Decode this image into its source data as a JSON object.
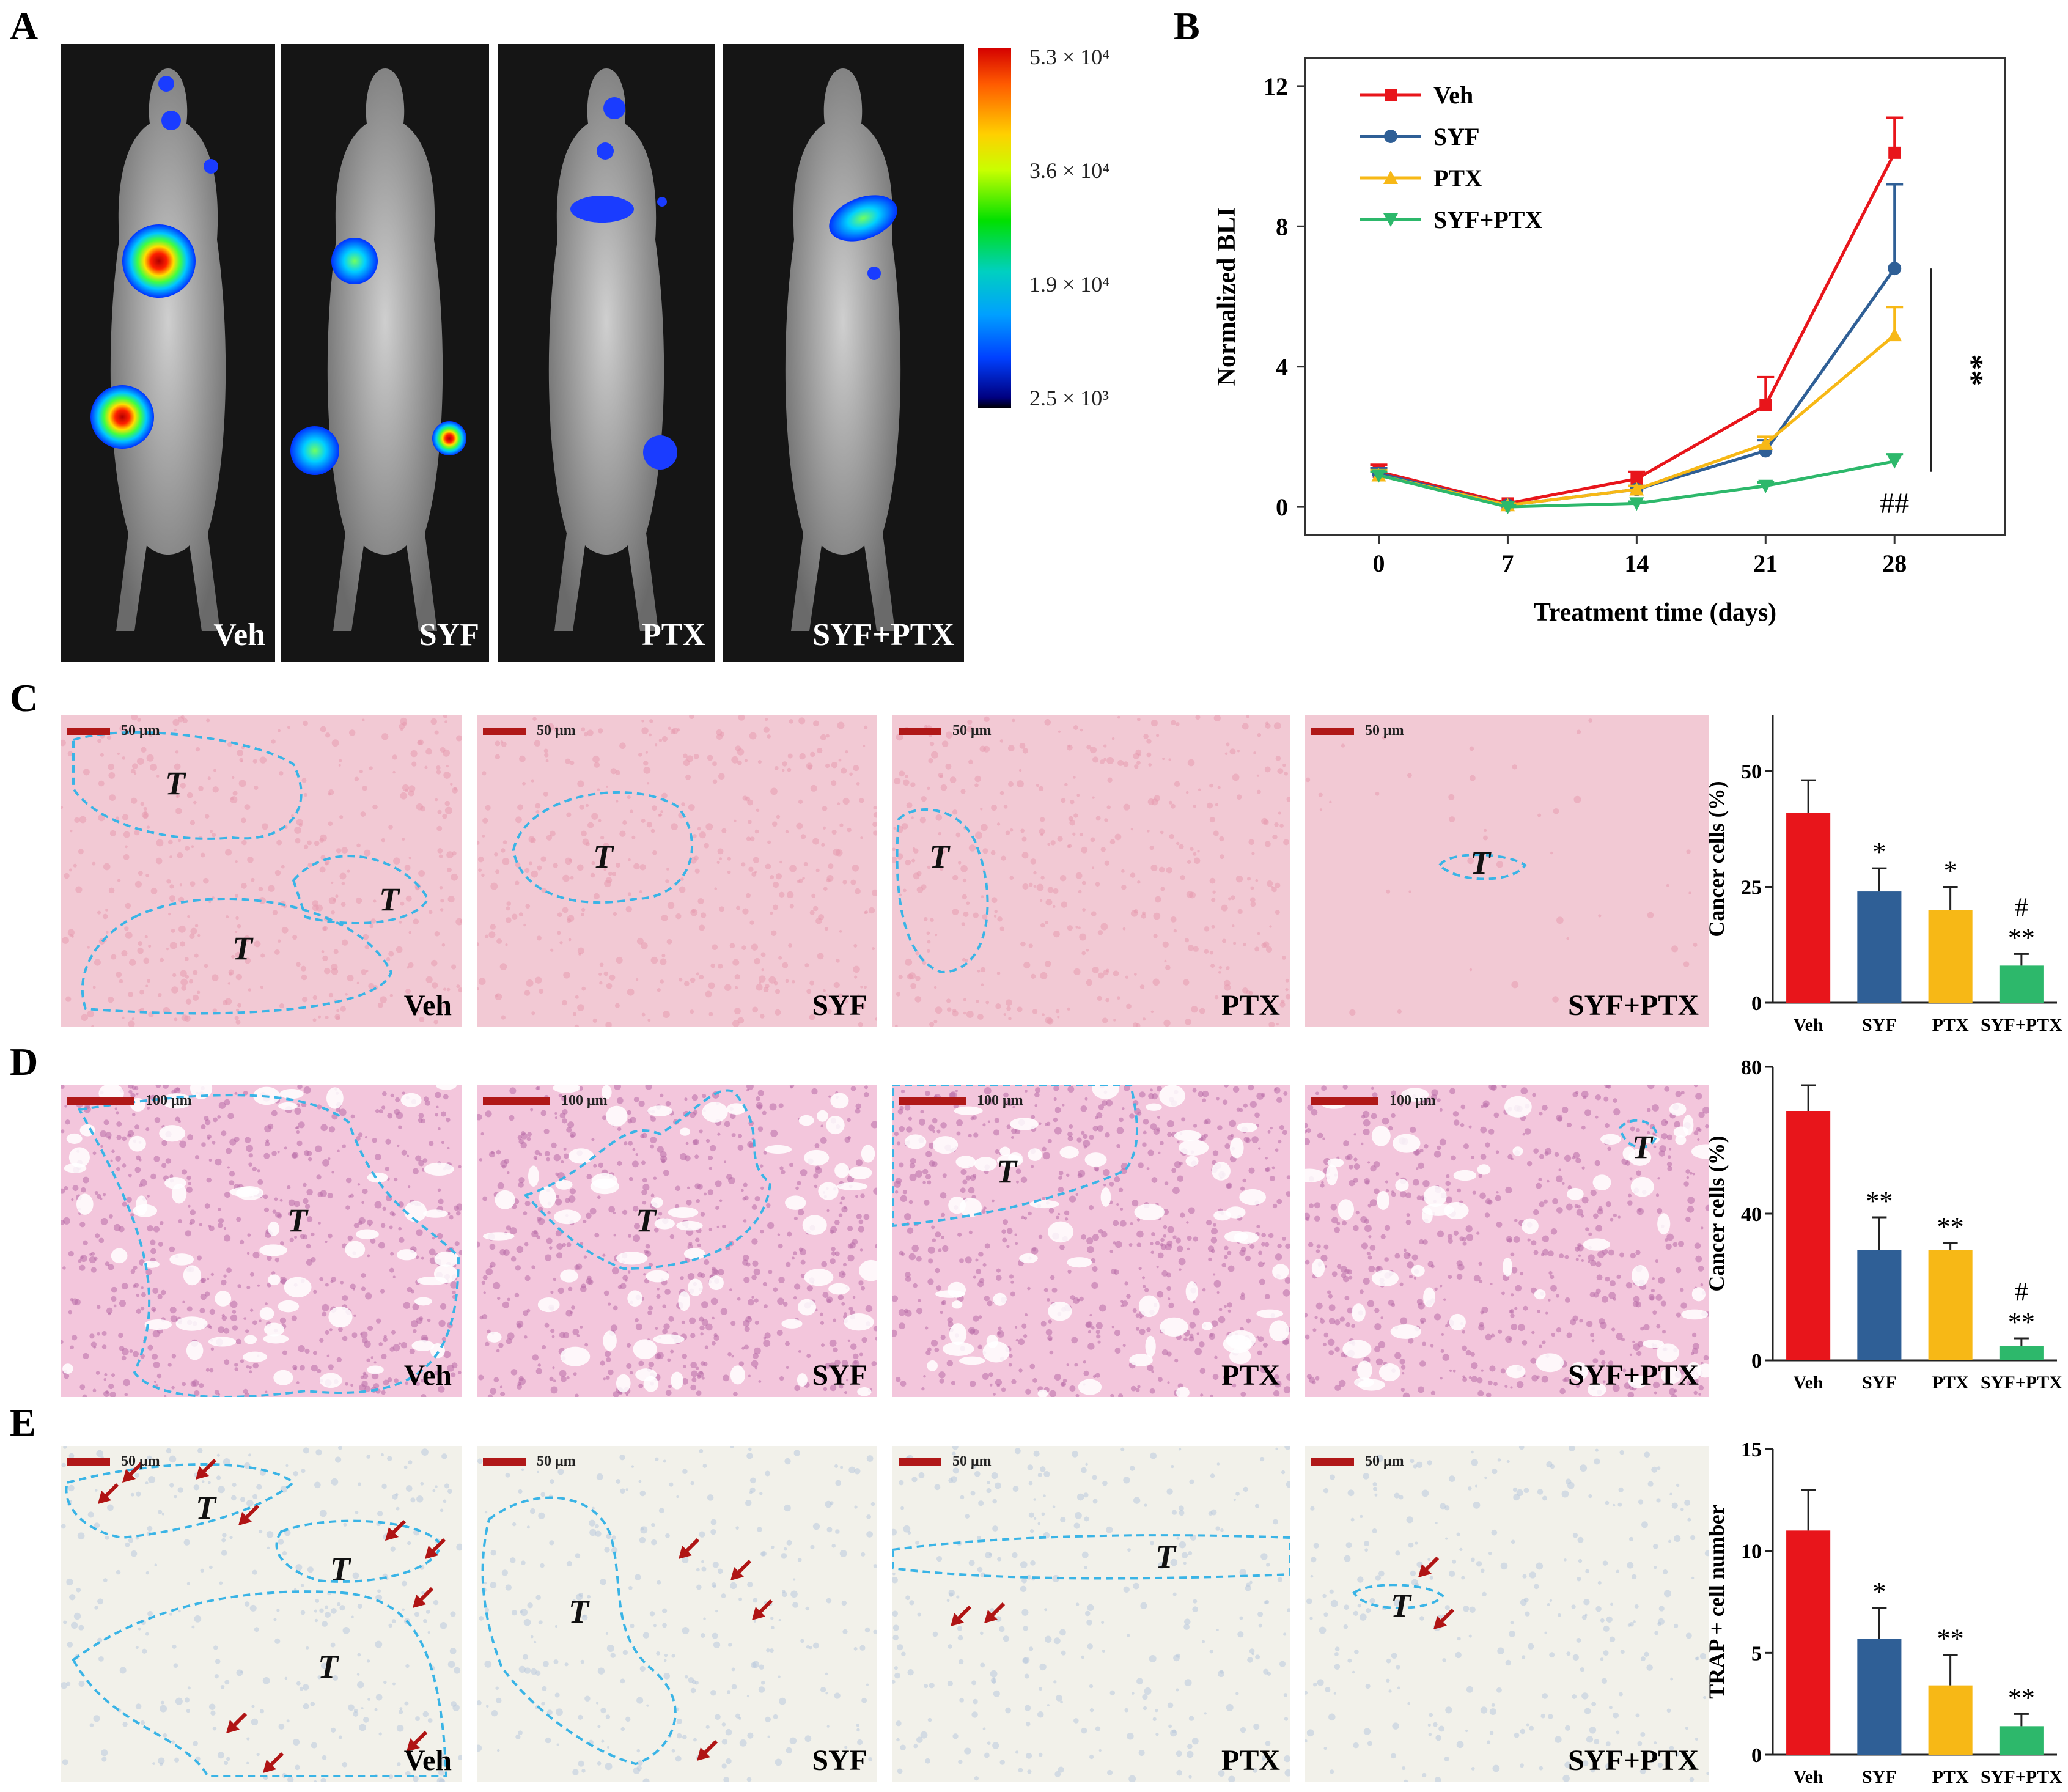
{
  "panel_labels": {
    "A": "A",
    "B": "B",
    "C": "C",
    "D": "D",
    "E": "E"
  },
  "panel_a": {
    "mice": [
      "Veh",
      "SYF",
      "PTX",
      "SYF+PTX"
    ],
    "colorbar_ticks": [
      "5.3 × 10⁴",
      "3.6 × 10⁴",
      "1.9 × 10⁴",
      "2.5 × 10³"
    ]
  },
  "groups": [
    "Veh",
    "SYF",
    "PTX",
    "SYF+PTX"
  ],
  "colors": {
    "Veh": "#e8151b",
    "SYF": "#2f5f96",
    "PTX": "#f7b816",
    "SYF+PTX": "#2db86b",
    "outline": "#3ab4e6",
    "arrow": "#b01414",
    "scalebar": "#b01818"
  },
  "histo": {
    "C": {
      "scale": "50 μm",
      "captions": [
        "Veh",
        "SYF",
        "PTX",
        "SYF+PTX"
      ]
    },
    "D": {
      "scale": "100 μm",
      "captions": [
        "Veh",
        "SYF",
        "PTX",
        "SYF+PTX"
      ]
    },
    "E": {
      "scale": "50 μm",
      "captions": [
        "Veh",
        "SYF",
        "PTX",
        "SYF+PTX"
      ]
    },
    "tumor_mark": "T"
  },
  "chart_data": [
    {
      "id": "B",
      "type": "line",
      "xlabel": "Treatment time (days)",
      "ylabel": "Normalized BLI",
      "x": [
        0,
        7,
        14,
        21,
        28
      ],
      "xticks": [
        "0",
        "7",
        "14",
        "21",
        "28"
      ],
      "yticks": [
        "0",
        "4",
        "8",
        "12"
      ],
      "ylim": [
        -0.8,
        12.8
      ],
      "xlim": [
        -4,
        34
      ],
      "series": [
        {
          "name": "Veh",
          "values": [
            1.0,
            0.1,
            0.8,
            2.9,
            10.1
          ],
          "err": [
            0.2,
            0.05,
            0.2,
            0.8,
            1.0
          ],
          "marker": "square"
        },
        {
          "name": "SYF",
          "values": [
            0.95,
            0.05,
            0.5,
            1.6,
            6.8
          ],
          "err": [
            0.15,
            0.05,
            0.1,
            0.3,
            2.4
          ],
          "marker": "circle"
        },
        {
          "name": "PTX",
          "values": [
            0.9,
            0.05,
            0.5,
            1.8,
            4.9
          ],
          "err": [
            0.15,
            0.05,
            0.1,
            0.2,
            0.8
          ],
          "marker": "triangle"
        },
        {
          "name": "SYF+PTX",
          "values": [
            0.9,
            0.0,
            0.1,
            0.6,
            1.3
          ],
          "err": [
            0.1,
            0.05,
            0.05,
            0.1,
            0.2
          ],
          "marker": "triangle-down"
        }
      ],
      "annotations": {
        "stars": "**",
        "hashes": "##"
      }
    },
    {
      "id": "C",
      "type": "bar",
      "categories": [
        "Veh",
        "SYF",
        "PTX",
        "SYF+PTX"
      ],
      "values": [
        41,
        24,
        20,
        8
      ],
      "err": [
        7,
        5,
        5,
        2.5
      ],
      "ylabel": "Cancer cells (%)",
      "ylim": [
        0,
        62
      ],
      "yticks": [
        0,
        25,
        50
      ],
      "sig": [
        "",
        "*",
        "*",
        "**"
      ],
      "sig2": [
        "",
        "",
        "",
        "#"
      ]
    },
    {
      "id": "D",
      "type": "bar",
      "categories": [
        "Veh",
        "SYF",
        "PTX",
        "SYF+PTX"
      ],
      "values": [
        68,
        30,
        30,
        4
      ],
      "err": [
        7,
        9,
        2,
        2
      ],
      "ylabel": "Cancer cells (%)",
      "ylim": [
        0,
        80
      ],
      "yticks": [
        0,
        40,
        80
      ],
      "sig": [
        "",
        "**",
        "**",
        "**"
      ],
      "sig2": [
        "",
        "",
        "",
        "#"
      ]
    },
    {
      "id": "E",
      "type": "bar",
      "categories": [
        "Veh",
        "SYF",
        "PTX",
        "SYF+PTX"
      ],
      "values": [
        11,
        5.7,
        3.4,
        1.4
      ],
      "err": [
        2,
        1.5,
        1.5,
        0.6
      ],
      "ylabel": "TRAP + cell number",
      "ylim": [
        0,
        15
      ],
      "yticks": [
        0,
        5,
        10,
        15
      ],
      "sig": [
        "",
        "*",
        "**",
        "**"
      ],
      "sig2": [
        "",
        "",
        "",
        ""
      ]
    }
  ]
}
